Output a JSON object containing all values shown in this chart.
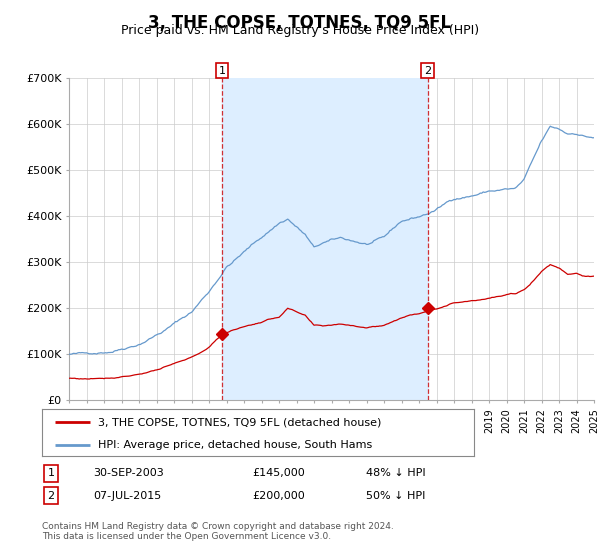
{
  "title": "3, THE COPSE, TOTNES, TQ9 5FL",
  "subtitle": "Price paid vs. HM Land Registry's House Price Index (HPI)",
  "title_fontsize": 12,
  "subtitle_fontsize": 9,
  "ylim": [
    0,
    700000
  ],
  "yticks": [
    0,
    100000,
    200000,
    300000,
    400000,
    500000,
    600000,
    700000
  ],
  "ytick_labels": [
    "£0",
    "£100K",
    "£200K",
    "£300K",
    "£400K",
    "£500K",
    "£600K",
    "£700K"
  ],
  "legend_entry1": "3, THE COPSE, TOTNES, TQ9 5FL (detached house)",
  "legend_entry2": "HPI: Average price, detached house, South Hams",
  "sale1_date": "30-SEP-2003",
  "sale1_price": "£145,000",
  "sale1_hpi": "48% ↓ HPI",
  "sale1_year": 2003.75,
  "sale1_value": 145000,
  "sale2_date": "07-JUL-2015",
  "sale2_price": "£200,000",
  "sale2_hpi": "50% ↓ HPI",
  "sale2_year": 2015.5,
  "sale2_value": 200000,
  "line_color_red": "#cc0000",
  "line_color_blue": "#6699cc",
  "vline_color": "#cc0000",
  "shade_color": "#ddeeff",
  "background_color": "#ffffff",
  "grid_color": "#cccccc",
  "footer_text": "Contains HM Land Registry data © Crown copyright and database right 2024.\nThis data is licensed under the Open Government Licence v3.0.",
  "xmin": 1995.0,
  "xmax": 2025.0
}
